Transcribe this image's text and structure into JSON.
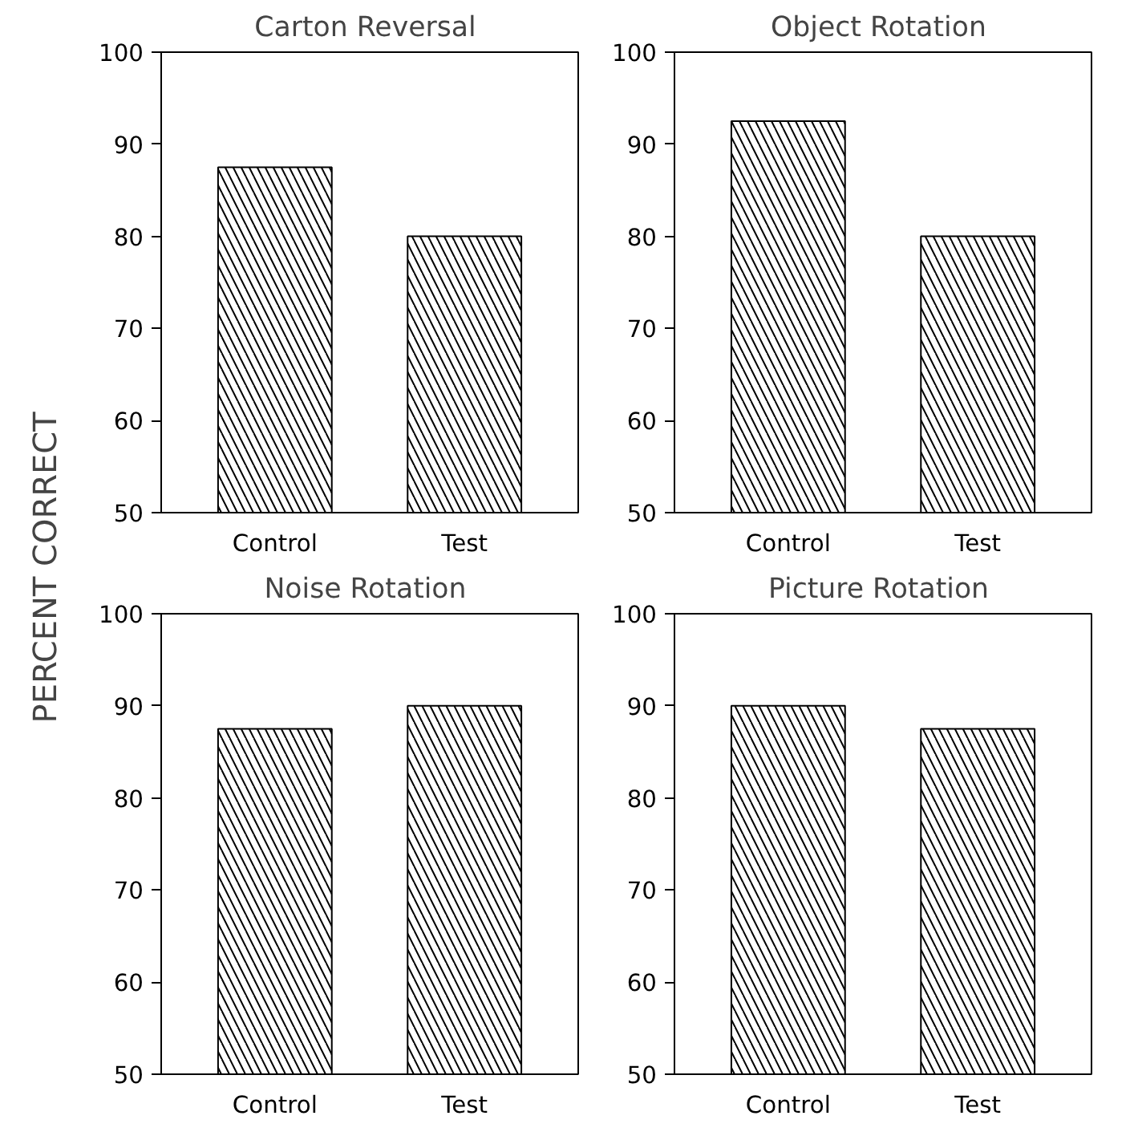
{
  "chart_data": [
    {
      "type": "bar",
      "title": "Carton  Reversal",
      "ylabel": "PERCENT  CORRECT",
      "categories": [
        "Control",
        "Test"
      ],
      "values": [
        87.5,
        80
      ],
      "color": "#000000",
      "ylim": [
        50,
        100
      ],
      "yticks": [
        50,
        60,
        70,
        80,
        90,
        100
      ],
      "grid": false
    },
    {
      "type": "bar",
      "title": "Object  Rotation",
      "categories": [
        "Control",
        "Test"
      ],
      "values": [
        92.5,
        80
      ],
      "color": "#000000",
      "ylim": [
        50,
        100
      ],
      "yticks": [
        50,
        60,
        70,
        80,
        90,
        100
      ],
      "grid": false
    },
    {
      "type": "bar",
      "title": "Noise  Rotation",
      "categories": [
        "Control",
        "Test"
      ],
      "values": [
        87.5,
        90
      ],
      "color": "#000000",
      "ylim": [
        50,
        100
      ],
      "yticks": [
        50,
        60,
        70,
        80,
        90,
        100
      ],
      "grid": false
    },
    {
      "type": "bar",
      "title": "Picture  Rotation",
      "categories": [
        "Control",
        "Test"
      ],
      "values": [
        90,
        87.5
      ],
      "color": "#000000",
      "ylim": [
        50,
        100
      ],
      "yticks": [
        50,
        60,
        70,
        80,
        90,
        100
      ],
      "grid": false
    }
  ]
}
